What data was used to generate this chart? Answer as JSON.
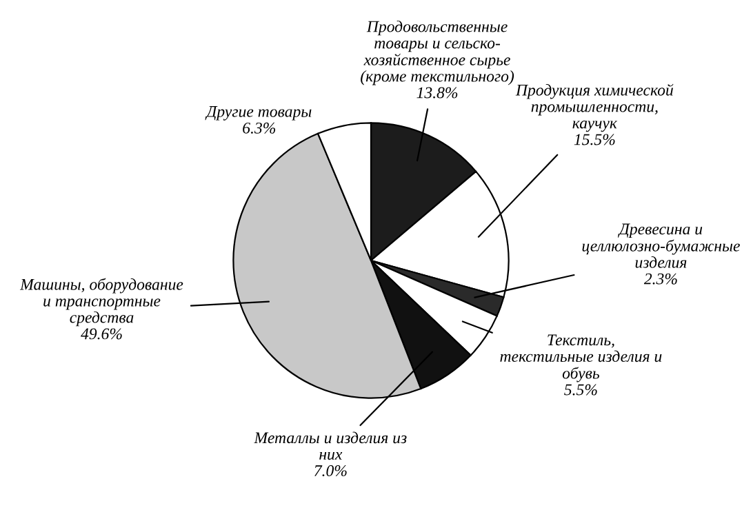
{
  "chart_data": {
    "type": "pie",
    "categories": [
      "Продовольственные\nтовары и сельско-\nхозяйственное сырье\n(кроме текстильного)",
      "Продукция химической\nпромышленности,\nкаучук",
      "Древесина и\nцеллюлозно-бумажные\nизделия",
      "Текстиль,\nтекстильные изделия и\nобувь",
      "Металлы и изделия из\nних",
      "Машины, оборудование\nи транспортные\nсредства",
      "Другие товары"
    ],
    "values": [
      13.8,
      15.5,
      2.3,
      5.5,
      7.0,
      49.6,
      6.3
    ],
    "value_labels": [
      "13.8%",
      "15.5%",
      "2.3%",
      "5.5%",
      "7.0%",
      "49.6%",
      "6.3%"
    ],
    "colors": [
      "#1c1c1c",
      "#ffffff",
      "#2a2a2a",
      "#ffffff",
      "#111111",
      "#c8c8c8",
      "#ffffff"
    ]
  }
}
